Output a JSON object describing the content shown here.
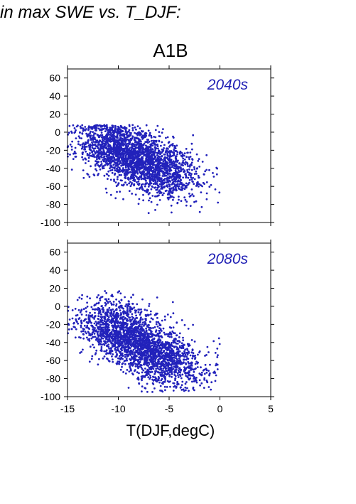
{
  "header": {
    "title": "in max SWE vs. T_DJF:",
    "scenario": "A1B"
  },
  "chart_data": [
    {
      "type": "scatter",
      "annotation": "2040s",
      "xlim": [
        -15,
        5
      ],
      "ylim": [
        -100,
        70
      ],
      "x_ticks": [
        -15,
        -10,
        -5,
        0,
        5
      ],
      "y_ticks": [
        -100,
        -80,
        -60,
        -40,
        -20,
        0,
        20,
        40,
        60
      ],
      "x_tick_labels_shown": false,
      "point_color": "#2222bb",
      "annotation_color": "#1e1eb4",
      "cloud": {
        "x_range": [
          -15,
          0
        ],
        "center_upper_left": [
          -11.5,
          -8
        ],
        "center_lower_right": [
          -4,
          -55
        ],
        "y_max": 8,
        "y_min": -90
      }
    },
    {
      "type": "scatter",
      "annotation": "2080s",
      "xlim": [
        -15,
        5
      ],
      "ylim": [
        -100,
        70
      ],
      "x_ticks": [
        -15,
        -10,
        -5,
        0,
        5
      ],
      "y_ticks": [
        -100,
        -80,
        -60,
        -40,
        -20,
        0,
        20,
        40,
        60
      ],
      "x_tick_labels_shown": true,
      "xlabel": "T(DJF,degC)",
      "point_color": "#2222bb",
      "annotation_color": "#1e1eb4",
      "cloud": {
        "x_range": [
          -15,
          0
        ],
        "center_upper_left": [
          -11.5,
          -15
        ],
        "center_lower_right": [
          -3.5,
          -75
        ],
        "y_max": 17,
        "y_min": -95
      }
    }
  ]
}
